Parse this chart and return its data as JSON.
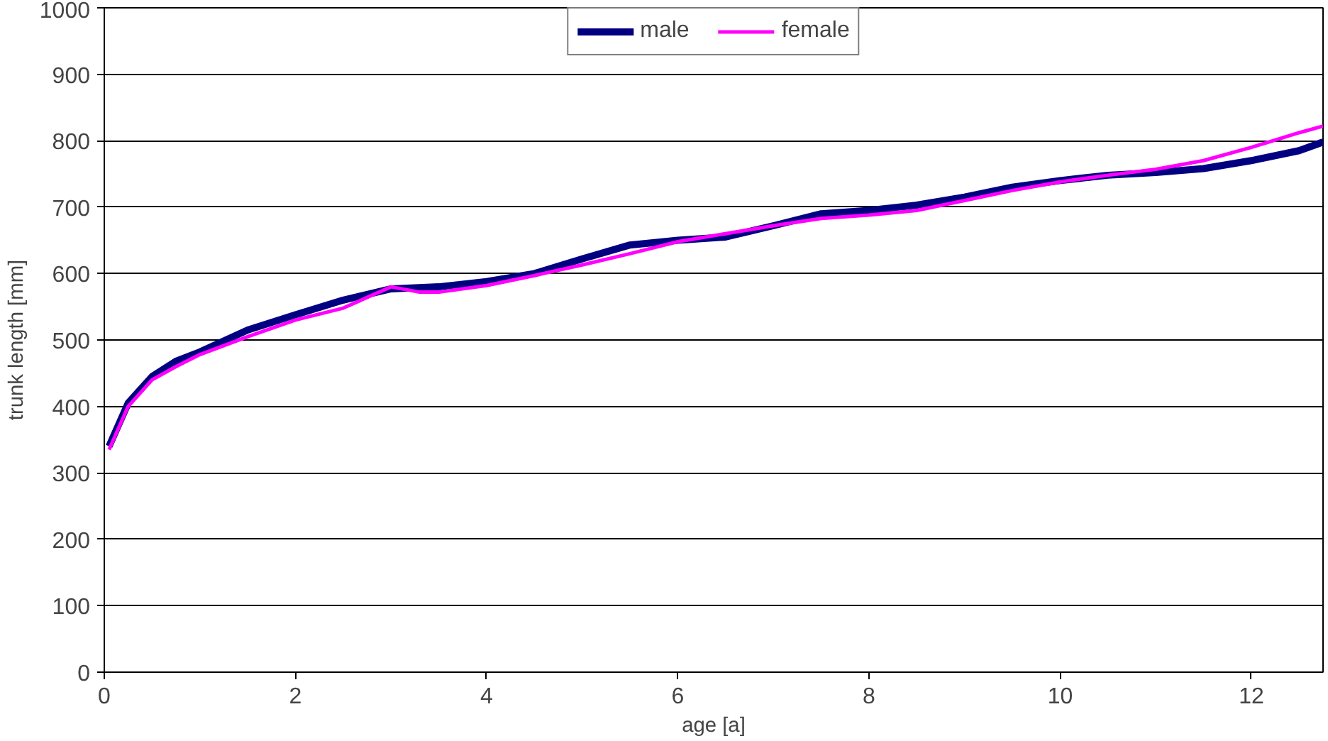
{
  "chart_data": {
    "type": "line",
    "xlabel": "age [a]",
    "ylabel": "trunk length [mm]",
    "xlim": [
      0,
      12.75
    ],
    "xticks": [
      0,
      2,
      4,
      6,
      8,
      10,
      12
    ],
    "ylim": [
      0,
      1000
    ],
    "yticks": [
      0,
      100,
      200,
      300,
      400,
      500,
      600,
      700,
      800,
      900,
      1000
    ],
    "grid": "y",
    "legend": "top",
    "marker": "none",
    "line_style": "solid",
    "series": [
      {
        "name": "male",
        "color": "#000080",
        "x": [
          0.05,
          0.25,
          0.5,
          0.75,
          1,
          1.5,
          2,
          2.5,
          3,
          3.5,
          4,
          4.5,
          5,
          5.5,
          6,
          6.5,
          7,
          7.5,
          8,
          8.5,
          9,
          9.5,
          10,
          10.5,
          11,
          11.5,
          12,
          12.5,
          12.75
        ],
        "values": [
          340,
          405,
          445,
          468,
          482,
          515,
          538,
          560,
          577,
          580,
          588,
          600,
          622,
          643,
          650,
          655,
          672,
          690,
          695,
          703,
          715,
          730,
          740,
          748,
          752,
          758,
          770,
          785,
          798
        ]
      },
      {
        "name": "female",
        "color": "#ff00ff",
        "x": [
          0.05,
          0.25,
          0.5,
          0.75,
          1,
          1.5,
          2,
          2.5,
          3,
          3.3,
          3.5,
          4,
          4.5,
          5,
          5.5,
          6,
          6.5,
          7,
          7.5,
          8,
          8.5,
          9,
          9.5,
          10,
          10.5,
          11,
          11.5,
          12,
          12.5,
          12.75
        ],
        "values": [
          335,
          400,
          440,
          460,
          478,
          505,
          530,
          548,
          580,
          572,
          572,
          582,
          597,
          613,
          630,
          648,
          660,
          672,
          683,
          688,
          695,
          710,
          725,
          738,
          748,
          757,
          770,
          790,
          812,
          822
        ]
      }
    ]
  }
}
